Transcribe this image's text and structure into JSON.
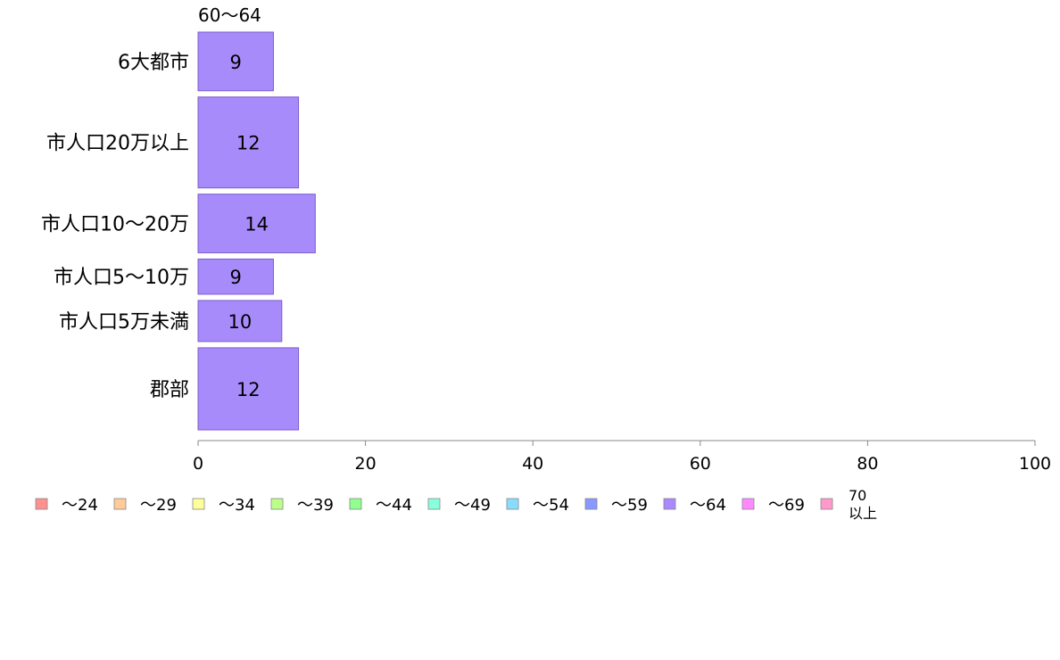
{
  "chart_data": {
    "type": "bar",
    "orientation": "horizontal",
    "column_header": "60〜64",
    "categories": [
      "6大都市",
      "市人口20万以上",
      "市人口10〜20万",
      "市人口5〜10万",
      "市人口5万未満",
      "郡部"
    ],
    "values": [
      9,
      12,
      14,
      9,
      10,
      12
    ],
    "relative_widths": [
      1.0,
      1.55,
      1.0,
      0.6,
      0.7,
      1.4
    ],
    "series_color": "#a78bfa",
    "xlim": [
      0,
      100
    ],
    "xticks": [
      0,
      20,
      40,
      60,
      80,
      100
    ],
    "grid": false,
    "legend_position": "bottom",
    "legend": [
      {
        "label": "〜24",
        "color": "#ff9090"
      },
      {
        "label": "〜29",
        "color": "#ffcc99"
      },
      {
        "label": "〜34",
        "color": "#ffff99"
      },
      {
        "label": "〜39",
        "color": "#bbff88"
      },
      {
        "label": "〜44",
        "color": "#90ff90"
      },
      {
        "label": "〜49",
        "color": "#88ffdd"
      },
      {
        "label": "〜54",
        "color": "#88ddff"
      },
      {
        "label": "〜59",
        "color": "#8899ff"
      },
      {
        "label": "〜64",
        "color": "#aa88ff"
      },
      {
        "label": "〜69",
        "color": "#ff88ff"
      },
      {
        "label": "70\n以上",
        "color": "#ff99cc"
      }
    ]
  }
}
